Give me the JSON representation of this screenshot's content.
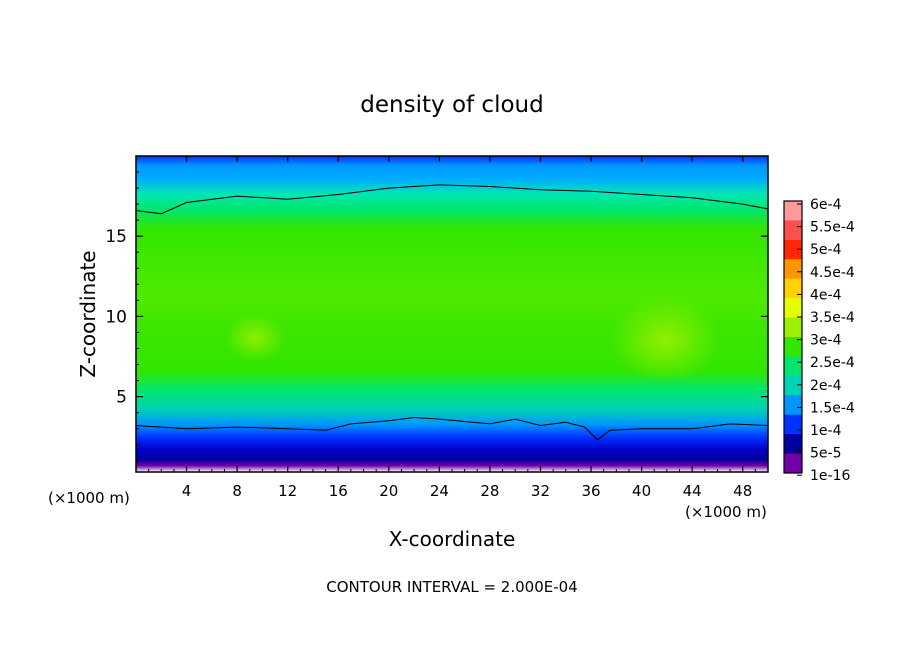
{
  "chart_data": {
    "type": "heatmap",
    "title": "density of cloud",
    "xlabel": "X-coordinate",
    "ylabel": "Z-coordinate",
    "x_unit": "(×1000 m)",
    "x_unit_right": "(×1000 m)",
    "x_ticks": [
      4,
      8,
      12,
      16,
      20,
      24,
      28,
      32,
      36,
      40,
      44,
      48
    ],
    "y_ticks": [
      5,
      10,
      15
    ],
    "xlim": [
      0,
      50
    ],
    "ylim": [
      0.3,
      20
    ],
    "footer": "CONTOUR INTERVAL = 2.000E-04",
    "colorbar": {
      "labels": [
        "6e-4",
        "5.5e-4",
        "5e-4",
        "4.5e-4",
        "4e-4",
        "3.5e-4",
        "3e-4",
        "2.5e-4",
        "2e-4",
        "1.5e-4",
        "1e-4",
        "5e-5",
        "1e-16"
      ],
      "colors": [
        "#ff9a9a",
        "#ff5050",
        "#ff2800",
        "#ff9600",
        "#ffd200",
        "#e6ff00",
        "#9cf000",
        "#32e600",
        "#00e66e",
        "#00d2b4",
        "#0096ff",
        "#0032ff",
        "#00009e",
        "#7000a8"
      ]
    },
    "contour_lines": [
      {
        "level": "2e-4",
        "x": [
          0,
          2,
          4,
          8,
          12,
          16,
          20,
          24,
          28,
          32,
          36,
          40,
          44,
          48,
          50
        ],
        "z": [
          16.6,
          16.4,
          17.1,
          17.5,
          17.3,
          17.6,
          18.0,
          18.2,
          18.1,
          17.9,
          17.8,
          17.6,
          17.4,
          17.0,
          16.7
        ]
      },
      {
        "level": "2e-4",
        "x": [
          0,
          4,
          8,
          12,
          15,
          17,
          20,
          22,
          24,
          28,
          30,
          32,
          34,
          35.5,
          36.5,
          37.5,
          40,
          44,
          47,
          50
        ],
        "z": [
          3.2,
          3.0,
          3.1,
          3.0,
          2.9,
          3.3,
          3.5,
          3.7,
          3.6,
          3.3,
          3.6,
          3.2,
          3.4,
          3.1,
          2.3,
          2.9,
          3.0,
          3.0,
          3.3,
          3.2
        ]
      }
    ]
  }
}
